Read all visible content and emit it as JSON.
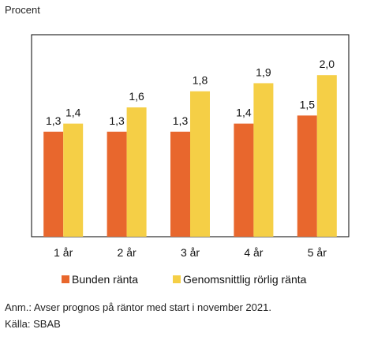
{
  "chart_data": {
    "type": "bar",
    "ylabel": "Procent",
    "categories": [
      "1 år",
      "2 år",
      "3 år",
      "4 år",
      "5 år"
    ],
    "series": [
      {
        "name": "Bunden ränta",
        "color": "#E8672D",
        "values": [
          1.3,
          1.3,
          1.3,
          1.4,
          1.5
        ],
        "labels": [
          "1,3",
          "1,3",
          "1,3",
          "1,4",
          "1,5"
        ]
      },
      {
        "name": "Genomsnittlig rörlig ränta",
        "color": "#F5CF46",
        "values": [
          1.4,
          1.6,
          1.8,
          1.9,
          2.0
        ],
        "labels": [
          "1,4",
          "1,6",
          "1,8",
          "1,9",
          "2,0"
        ]
      }
    ],
    "ylim": [
      0,
      2.5
    ],
    "grid": false,
    "legend_position": "bottom"
  },
  "notes": {
    "annotation": "Anm.: Avser prognos på räntor med start i november 2021.",
    "source": "Källa: SBAB"
  }
}
